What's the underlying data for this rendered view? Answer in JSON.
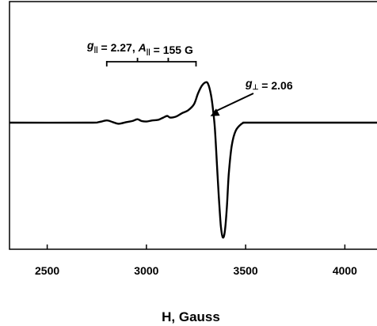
{
  "chart_data": {
    "type": "line",
    "title": "",
    "xlabel": "H, Gauss",
    "ylabel": "",
    "xlim": [
      2310,
      4170
    ],
    "ylim": [
      -1.0,
      1.0
    ],
    "xticks": [
      2500,
      3000,
      3500,
      4000
    ],
    "xtick_labels": [
      "2500",
      "3000",
      "3500",
      "4000"
    ],
    "grid": false,
    "series": [
      {
        "values_note": "",
        "x": [
          2310,
          2700,
          2760,
          2800,
          2830,
          2860,
          2900,
          2930,
          2955,
          2975,
          3000,
          3030,
          3060,
          3085,
          3105,
          3120,
          3150,
          3180,
          3210,
          3240,
          3260,
          3280,
          3300,
          3312,
          3325,
          3335,
          3345,
          3355,
          3365,
          3375,
          3385,
          3395,
          3405,
          3415,
          3430,
          3450,
          3480,
          3500,
          3550,
          4170
        ],
        "y": [
          0,
          0.0,
          0.01,
          0.04,
          0.01,
          -0.01,
          0.01,
          0.03,
          0.06,
          0.03,
          0.02,
          0.04,
          0.05,
          0.09,
          0.12,
          0.09,
          0.11,
          0.17,
          0.22,
          0.33,
          0.52,
          0.66,
          0.72,
          0.68,
          0.5,
          0.25,
          -0.05,
          -0.35,
          -0.65,
          -0.9,
          -1.0,
          -0.95,
          -0.75,
          -0.45,
          -0.2,
          -0.07,
          -0.01,
          0.0,
          0.0,
          0.0
        ]
      }
    ],
    "annotations": [
      {
        "parts": [
          [
            "g",
            "it"
          ],
          [
            "||",
            "sub"
          ],
          [
            " = 2.27, ",
            ""
          ],
          [
            "A",
            "it"
          ],
          [
            "||",
            "sub"
          ],
          [
            " = 155 G",
            ""
          ]
        ],
        "bracket_x": [
          2800,
          2955,
          3110,
          3250
        ]
      },
      {
        "parts": [
          [
            "g",
            "it"
          ],
          [
            "⊥",
            "sub"
          ],
          [
            " = 2.06",
            ""
          ]
        ],
        "arrow_to_x": 3330,
        "arrow_to_y": 0.03
      }
    ]
  }
}
